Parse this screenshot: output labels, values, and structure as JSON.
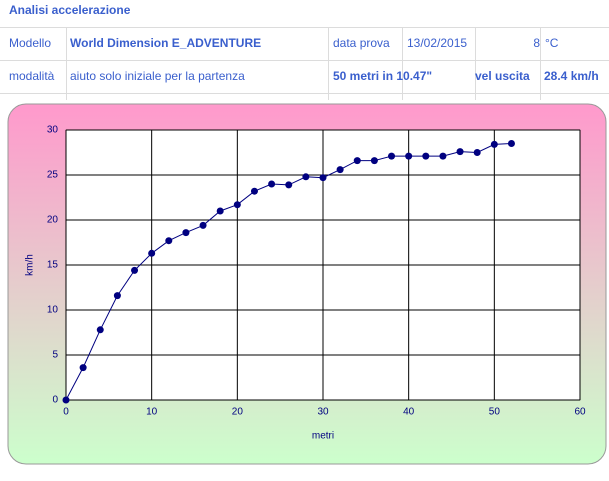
{
  "sheet": {
    "title": "Analisi accelerazione",
    "rows": [
      [
        "Modello",
        "World Dimension  E_ADVENTURE",
        "data prova",
        "13/02/2015",
        "8",
        "°C"
      ],
      [
        "modalità",
        "aiuto solo iniziale per la partenza",
        "50 metri in 10.47\"",
        "vel uscita",
        "28.4 km/h"
      ]
    ]
  },
  "chart_data": {
    "type": "line",
    "xlabel": "metri",
    "ylabel": "km/h",
    "x": [
      0,
      2,
      4,
      6,
      8,
      10,
      12,
      14,
      16,
      18,
      20,
      22,
      24,
      26,
      28,
      30,
      32,
      34,
      36,
      38,
      40,
      42,
      44,
      46,
      48,
      50,
      52
    ],
    "series": [
      {
        "color": "#000080",
        "values": [
          0,
          3.6,
          7.8,
          11.6,
          14.4,
          16.3,
          17.7,
          18.6,
          19.4,
          21.0,
          21.7,
          23.2,
          24.0,
          23.9,
          24.8,
          24.7,
          25.6,
          26.6,
          26.6,
          27.1,
          27.1,
          27.1,
          27.1,
          27.6,
          27.5,
          28.4,
          28.5
        ]
      }
    ],
    "xlim": [
      0,
      60
    ],
    "xticks": [
      0,
      10,
      20,
      30,
      40,
      50,
      60
    ],
    "ylim": [
      0,
      30
    ],
    "yticks": [
      0,
      5,
      10,
      15,
      20,
      25,
      30
    ],
    "grid": true
  }
}
